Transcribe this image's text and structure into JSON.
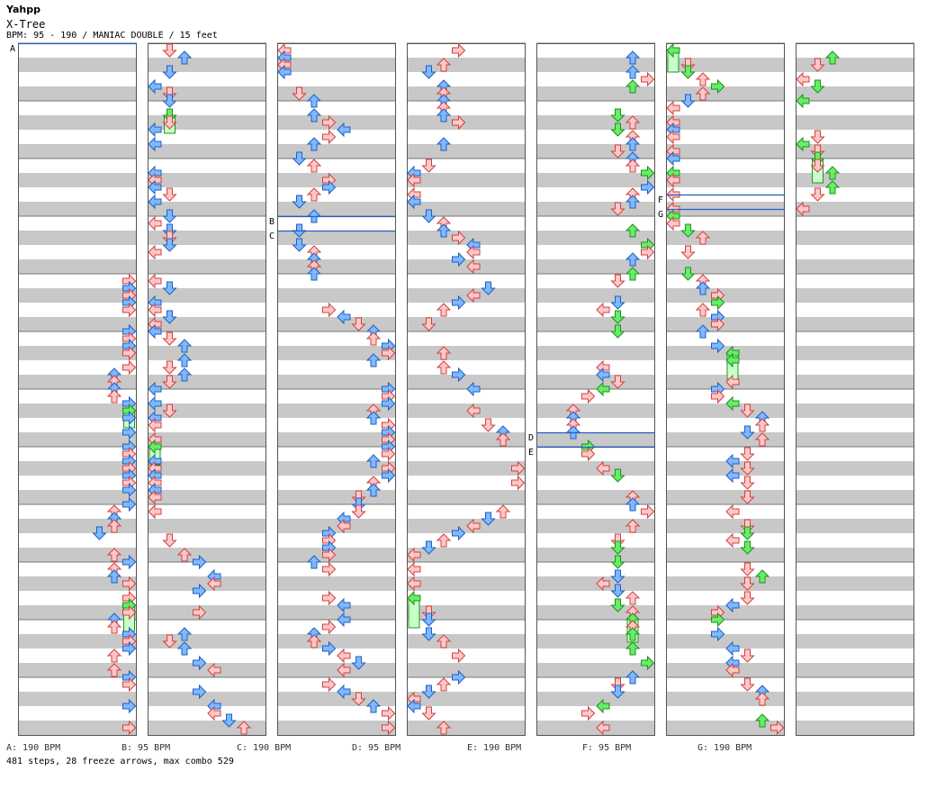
{
  "header": {
    "artist": "Yahpp",
    "title": "X-Tree",
    "info": "BPM: 95 - 190 / MANIAC DOUBLE / 15 feet"
  },
  "bpm_legend": [
    {
      "label": "A: 190 BPM"
    },
    {
      "label": "B: 95 BPM"
    },
    {
      "label": "C: 190 BPM"
    },
    {
      "label": "D: 95 BPM"
    },
    {
      "label": "E: 190 BPM"
    },
    {
      "label": "F: 95 BPM"
    },
    {
      "label": "G: 190 BPM"
    }
  ],
  "footer": "481 steps, 28 freeze arrows, max combo 529",
  "colors": {
    "red_fill": "#ffc8c8",
    "red_stroke": "#d04040",
    "blue_fill": "#7fb8ff",
    "blue_stroke": "#1f5fbf",
    "green_fill": "#66ee66",
    "green_stroke": "#1f8f1f",
    "pink_fill": "#ffb0f0",
    "pink_stroke": "#c050b0",
    "freeze_fill": "#c8ffc8",
    "freeze_stroke": "#2a8f2a",
    "stripe": "#c8c8c8",
    "marker": "#2060c0"
  },
  "chart_data": {
    "type": "step-chart",
    "columns": 7,
    "measures_per_column": 12,
    "lanes": 8,
    "bpm_markers": [
      {
        "id": "A",
        "col": 0,
        "measure": 0,
        "beat": 0
      },
      {
        "id": "B",
        "col": 2,
        "measure": 3,
        "beat": 0
      },
      {
        "id": "C",
        "col": 2,
        "measure": 3,
        "beat": 1
      },
      {
        "id": "D",
        "col": 4,
        "measure": 6,
        "beat": 3
      },
      {
        "id": "E",
        "col": 4,
        "measure": 7,
        "beat": 0
      },
      {
        "id": "F",
        "col": 5,
        "measure": 2,
        "beat": 2.5
      },
      {
        "id": "G",
        "col": 5,
        "measure": 2,
        "beat": 3.5
      }
    ]
  }
}
